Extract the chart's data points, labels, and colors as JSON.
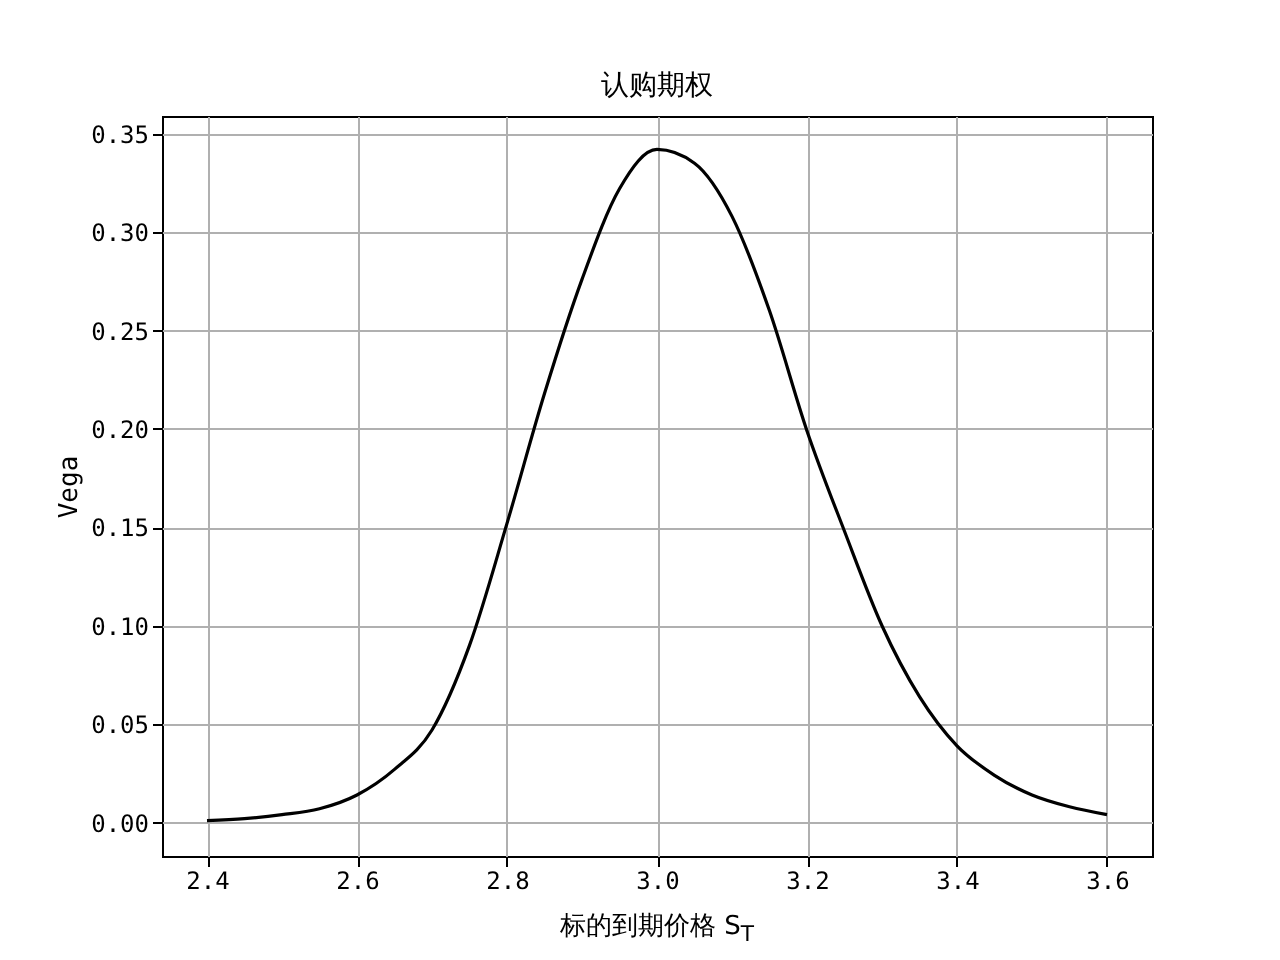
{
  "chart_data": {
    "type": "line",
    "title": "认购期权",
    "xlabel": "标的到期价格 S$_{T}$",
    "ylabel": "Vega",
    "x": [
      2.4,
      2.45,
      2.5,
      2.55,
      2.6,
      2.65,
      2.7,
      2.75,
      2.8,
      2.85,
      2.9,
      2.95,
      3.0,
      3.05,
      3.1,
      3.15,
      3.2,
      3.25,
      3.3,
      3.35,
      3.4,
      3.45,
      3.5,
      3.55,
      3.6
    ],
    "series": [
      {
        "color": "#000000",
        "values": [
          0.001,
          0.002,
          0.004,
          0.007,
          0.014,
          0.027,
          0.047,
          0.09,
          0.152,
          0.218,
          0.276,
          0.322,
          0.342,
          0.335,
          0.308,
          0.26,
          0.199,
          0.148,
          0.1,
          0.064,
          0.039,
          0.024,
          0.014,
          0.008,
          0.004
        ]
      }
    ],
    "xlim": [
      2.34,
      3.66
    ],
    "ylim": [
      -0.017,
      0.359
    ],
    "xticks": [
      {
        "value": 2.4,
        "label": "2.4"
      },
      {
        "value": 2.6,
        "label": "2.6"
      },
      {
        "value": 2.8,
        "label": "2.8"
      },
      {
        "value": 3.0,
        "label": "3.0"
      },
      {
        "value": 3.2,
        "label": "3.2"
      },
      {
        "value": 3.4,
        "label": "3.4"
      },
      {
        "value": 3.6,
        "label": "3.6"
      }
    ],
    "yticks": [
      {
        "value": 0,
        "label": "0.00"
      },
      {
        "value": 0.05,
        "label": "0.05"
      },
      {
        "value": 0.1,
        "label": "0.10"
      },
      {
        "value": 0.15,
        "label": "0.15"
      },
      {
        "value": 0.2,
        "label": "0.20"
      },
      {
        "value": 0.25,
        "label": "0.25"
      },
      {
        "value": 0.3,
        "label": "0.30"
      },
      {
        "value": 0.35,
        "label": "0.35"
      }
    ],
    "grid": true,
    "line_style": "solid"
  }
}
